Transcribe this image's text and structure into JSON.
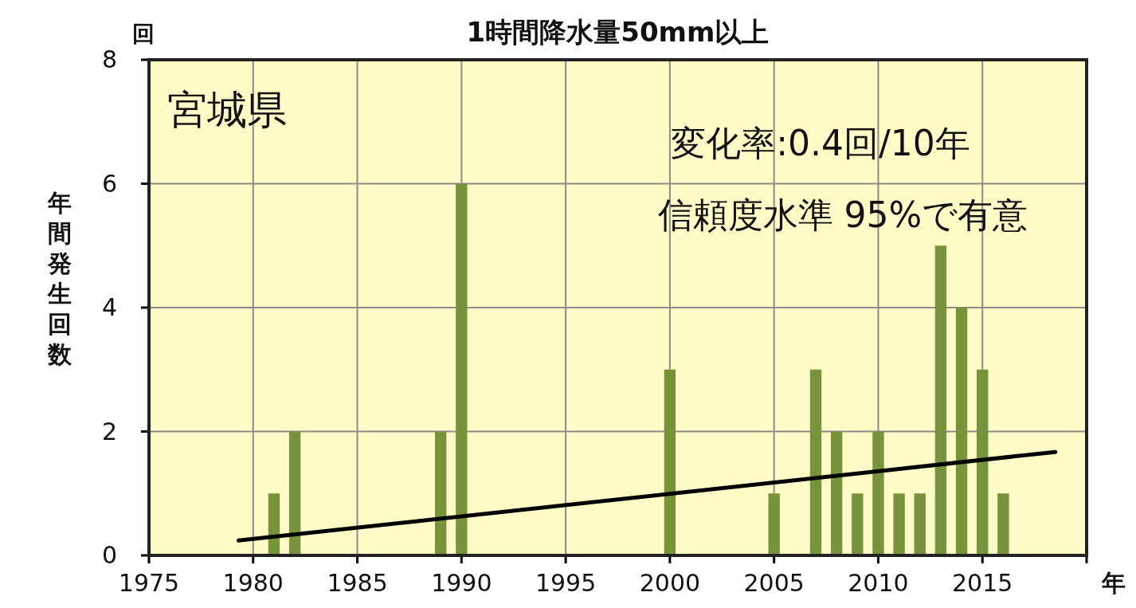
{
  "chart_data": {
    "type": "bar",
    "title": "1時間降水量50mm以上",
    "ylabel": "年間発生回数",
    "xlabel": "年",
    "annotations": [
      "回",
      "宮城県",
      "変化率:0.4回/10年",
      "信頼度水準 95%で有意"
    ],
    "x": [
      1981,
      1982,
      1989,
      1990,
      2000,
      2005,
      2007,
      2008,
      2009,
      2010,
      2011,
      2012,
      2013,
      2014,
      2015,
      2016
    ],
    "series": [
      {
        "color": "#77933c",
        "values": [
          1,
          2,
          2,
          6,
          3,
          1,
          3,
          2,
          1,
          2,
          1,
          1,
          5,
          4,
          3,
          1
        ]
      },
      {
        "type": "line",
        "color": "#000000",
        "x": [
          1979.3,
          2018.5
        ],
        "values": [
          0.24,
          1.67
        ]
      }
    ],
    "xlim": [
      1975,
      2020
    ],
    "xticks": [
      1975,
      1980,
      1985,
      1990,
      1995,
      2000,
      2005,
      2010,
      2015,
      {
        "value": 2020,
        "label": null
      }
    ],
    "ylim": [
      0,
      8
    ],
    "yticks": [
      0,
      2,
      4,
      6,
      8
    ],
    "grid": true
  }
}
